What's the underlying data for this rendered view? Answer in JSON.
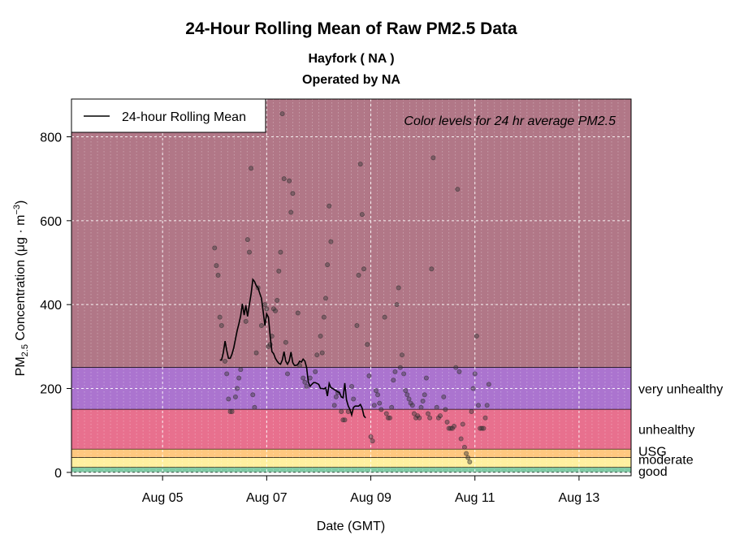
{
  "header": {
    "title": "24-Hour Rolling Mean of Raw PM2.5 Data",
    "subtitle_site": "Hayfork ( NA )",
    "subtitle_operator": "Operated by NA"
  },
  "chart_data": {
    "type": "scatter",
    "title": "24-Hour Rolling Mean of Raw PM2.5 Data",
    "xlabel": "Date (GMT)",
    "ylabel": "PM2.5 Concentration (µg·m−3)",
    "ylabel_parts": {
      "pre": "PM",
      "sub": "2.5",
      "mid": " Concentration (",
      "unit": "μg · m",
      "sup": "−3",
      "post": ")"
    },
    "xlim": [
      "2024-08-03T06:00",
      "2024-08-14T00:00"
    ],
    "ylim": [
      -8,
      890
    ],
    "x_ticks": [
      {
        "date": "2024-08-05",
        "label": "Aug 05"
      },
      {
        "date": "2024-08-07",
        "label": "Aug 07"
      },
      {
        "date": "2024-08-09",
        "label": "Aug 09"
      },
      {
        "date": "2024-08-11",
        "label": "Aug 11"
      },
      {
        "date": "2024-08-13",
        "label": "Aug 13"
      }
    ],
    "y_ticks": [
      0,
      200,
      400,
      600,
      800
    ],
    "grid": true,
    "legend": {
      "position": "top-left",
      "entries": [
        "24-hour Rolling Mean"
      ]
    },
    "annotation": "Color levels for 24 hr average PM2.5",
    "aqi_bands": [
      {
        "label": "good",
        "min": 0,
        "max": 12,
        "color": "#7fc9a4"
      },
      {
        "label": "moderate",
        "min": 12,
        "max": 35.5,
        "color": "#fff0a0"
      },
      {
        "label": "USG",
        "min": 35.5,
        "max": 55.5,
        "color": "#ffc87f"
      },
      {
        "label": "unhealthy",
        "min": 55.5,
        "max": 150.5,
        "color": "#e8708e"
      },
      {
        "label": "very unhealthy",
        "min": 150.5,
        "max": 250.5,
        "color": "#ab74cf"
      },
      {
        "label": "",
        "min": 250.5,
        "max": 890,
        "color": "#b17787"
      }
    ],
    "series": [
      {
        "name": "",
        "kind": "points",
        "points": [
          [
            "2024-08-06T00:00",
            535
          ],
          [
            "2024-08-06T00:48",
            493
          ],
          [
            "2024-08-06T01:36",
            470
          ],
          [
            "2024-08-06T02:24",
            370
          ],
          [
            "2024-08-06T03:12",
            350
          ],
          [
            "2024-08-06T04:48",
            265
          ],
          [
            "2024-08-06T05:36",
            235
          ],
          [
            "2024-08-06T06:24",
            175
          ],
          [
            "2024-08-06T07:12",
            145
          ],
          [
            "2024-08-06T08:00",
            145
          ],
          [
            "2024-08-06T09:36",
            180
          ],
          [
            "2024-08-06T10:24",
            200
          ],
          [
            "2024-08-06T11:12",
            225
          ],
          [
            "2024-08-06T12:00",
            245
          ],
          [
            "2024-08-06T14:24",
            360
          ],
          [
            "2024-08-06T15:12",
            555
          ],
          [
            "2024-08-06T16:00",
            525
          ],
          [
            "2024-08-06T16:48",
            725
          ],
          [
            "2024-08-06T17:36",
            185
          ],
          [
            "2024-08-06T18:24",
            155
          ],
          [
            "2024-08-06T19:12",
            285
          ],
          [
            "2024-08-06T20:00",
            440
          ],
          [
            "2024-08-06T21:36",
            350
          ],
          [
            "2024-08-06T23:12",
            400
          ],
          [
            "2024-08-07T00:00",
            390
          ],
          [
            "2024-08-07T00:48",
            300
          ],
          [
            "2024-08-07T01:36",
            305
          ],
          [
            "2024-08-07T02:24",
            325
          ],
          [
            "2024-08-07T03:12",
            390
          ],
          [
            "2024-08-07T04:00",
            385
          ],
          [
            "2024-08-07T04:48",
            410
          ],
          [
            "2024-08-07T05:36",
            480
          ],
          [
            "2024-08-07T06:24",
            525
          ],
          [
            "2024-08-07T07:12",
            855
          ],
          [
            "2024-08-07T08:00",
            700
          ],
          [
            "2024-08-07T08:48",
            310
          ],
          [
            "2024-08-07T09:36",
            235
          ],
          [
            "2024-08-07T10:24",
            695
          ],
          [
            "2024-08-07T11:12",
            620
          ],
          [
            "2024-08-07T12:00",
            665
          ],
          [
            "2024-08-07T14:24",
            380
          ],
          [
            "2024-08-07T15:12",
            255
          ],
          [
            "2024-08-07T16:48",
            225
          ],
          [
            "2024-08-07T17:36",
            215
          ],
          [
            "2024-08-07T18:24",
            205
          ],
          [
            "2024-08-07T20:00",
            225
          ],
          [
            "2024-08-07T22:24",
            240
          ],
          [
            "2024-08-07T23:12",
            280
          ],
          [
            "2024-08-08T00:48",
            325
          ],
          [
            "2024-08-08T01:36",
            285
          ],
          [
            "2024-08-08T02:24",
            370
          ],
          [
            "2024-08-08T03:12",
            415
          ],
          [
            "2024-08-08T04:00",
            495
          ],
          [
            "2024-08-08T04:48",
            635
          ],
          [
            "2024-08-08T05:36",
            550
          ],
          [
            "2024-08-08T07:12",
            160
          ],
          [
            "2024-08-08T08:00",
            180
          ],
          [
            "2024-08-08T08:48",
            190
          ],
          [
            "2024-08-08T10:24",
            145
          ],
          [
            "2024-08-08T11:12",
            125
          ],
          [
            "2024-08-08T12:00",
            125
          ],
          [
            "2024-08-08T13:36",
            145
          ],
          [
            "2024-08-08T15:12",
            205
          ],
          [
            "2024-08-08T16:00",
            175
          ],
          [
            "2024-08-08T17:36",
            350
          ],
          [
            "2024-08-08T18:24",
            470
          ],
          [
            "2024-08-08T19:12",
            735
          ],
          [
            "2024-08-08T20:00",
            615
          ],
          [
            "2024-08-08T20:48",
            485
          ],
          [
            "2024-08-08T22:24",
            305
          ],
          [
            "2024-08-08T23:12",
            230
          ],
          [
            "2024-08-09T00:00",
            85
          ],
          [
            "2024-08-09T00:48",
            75
          ],
          [
            "2024-08-09T01:36",
            160
          ],
          [
            "2024-08-09T02:24",
            195
          ],
          [
            "2024-08-09T03:12",
            185
          ],
          [
            "2024-08-09T04:00",
            165
          ],
          [
            "2024-08-09T04:48",
            150
          ],
          [
            "2024-08-09T06:24",
            370
          ],
          [
            "2024-08-09T07:12",
            140
          ],
          [
            "2024-08-09T08:00",
            130
          ],
          [
            "2024-08-09T08:48",
            130
          ],
          [
            "2024-08-09T09:36",
            155
          ],
          [
            "2024-08-09T10:24",
            220
          ],
          [
            "2024-08-09T11:12",
            240
          ],
          [
            "2024-08-09T12:00",
            400
          ],
          [
            "2024-08-09T12:48",
            440
          ],
          [
            "2024-08-09T13:36",
            250
          ],
          [
            "2024-08-09T14:24",
            280
          ],
          [
            "2024-08-09T15:12",
            235
          ],
          [
            "2024-08-09T16:00",
            195
          ],
          [
            "2024-08-09T16:48",
            185
          ],
          [
            "2024-08-09T17:36",
            175
          ],
          [
            "2024-08-09T18:24",
            165
          ],
          [
            "2024-08-09T19:12",
            160
          ],
          [
            "2024-08-09T20:00",
            140
          ],
          [
            "2024-08-09T20:48",
            130
          ],
          [
            "2024-08-09T21:36",
            135
          ],
          [
            "2024-08-09T22:24",
            130
          ],
          [
            "2024-08-09T23:12",
            155
          ],
          [
            "2024-08-10T00:00",
            170
          ],
          [
            "2024-08-10T00:48",
            185
          ],
          [
            "2024-08-10T01:36",
            225
          ],
          [
            "2024-08-10T02:24",
            140
          ],
          [
            "2024-08-10T03:12",
            130
          ],
          [
            "2024-08-10T04:00",
            485
          ],
          [
            "2024-08-10T04:48",
            750
          ],
          [
            "2024-08-10T06:24",
            155
          ],
          [
            "2024-08-10T07:12",
            130
          ],
          [
            "2024-08-10T08:00",
            135
          ],
          [
            "2024-08-10T09:36",
            180
          ],
          [
            "2024-08-10T10:24",
            150
          ],
          [
            "2024-08-10T11:12",
            120
          ],
          [
            "2024-08-10T12:00",
            105
          ],
          [
            "2024-08-10T12:48",
            105
          ],
          [
            "2024-08-10T13:36",
            105
          ],
          [
            "2024-08-10T14:24",
            110
          ],
          [
            "2024-08-10T15:12",
            250
          ],
          [
            "2024-08-10T16:00",
            675
          ],
          [
            "2024-08-10T16:48",
            240
          ],
          [
            "2024-08-10T17:36",
            80
          ],
          [
            "2024-08-10T18:24",
            115
          ],
          [
            "2024-08-10T19:12",
            60
          ],
          [
            "2024-08-10T20:00",
            45
          ],
          [
            "2024-08-10T20:48",
            35
          ],
          [
            "2024-08-10T21:36",
            25
          ],
          [
            "2024-08-10T22:24",
            145
          ],
          [
            "2024-08-10T23:12",
            200
          ],
          [
            "2024-08-11T00:00",
            235
          ],
          [
            "2024-08-11T00:48",
            325
          ],
          [
            "2024-08-11T01:36",
            160
          ],
          [
            "2024-08-11T02:24",
            105
          ],
          [
            "2024-08-11T03:12",
            105
          ],
          [
            "2024-08-11T04:00",
            105
          ],
          [
            "2024-08-11T04:48",
            130
          ],
          [
            "2024-08-11T05:36",
            160
          ],
          [
            "2024-08-11T06:24",
            210
          ]
        ]
      },
      {
        "name": "24-hour Rolling Mean",
        "kind": "line",
        "points": [
          [
            "2024-08-06T02:24",
            268
          ],
          [
            "2024-08-06T03:12",
            268
          ],
          [
            "2024-08-06T04:00",
            285
          ],
          [
            "2024-08-06T04:48",
            313
          ],
          [
            "2024-08-06T05:36",
            290
          ],
          [
            "2024-08-06T06:24",
            272
          ],
          [
            "2024-08-06T07:12",
            272
          ],
          [
            "2024-08-06T08:00",
            282
          ],
          [
            "2024-08-06T08:48",
            297
          ],
          [
            "2024-08-06T09:36",
            318
          ],
          [
            "2024-08-06T10:24",
            338
          ],
          [
            "2024-08-06T11:12",
            355
          ],
          [
            "2024-08-06T12:00",
            373
          ],
          [
            "2024-08-06T12:48",
            402
          ],
          [
            "2024-08-06T13:36",
            375
          ],
          [
            "2024-08-06T14:24",
            398
          ],
          [
            "2024-08-06T15:12",
            372
          ],
          [
            "2024-08-06T16:00",
            400
          ],
          [
            "2024-08-06T16:48",
            425
          ],
          [
            "2024-08-06T17:36",
            460
          ],
          [
            "2024-08-06T18:24",
            455
          ],
          [
            "2024-08-06T19:12",
            445
          ],
          [
            "2024-08-06T20:00",
            440
          ],
          [
            "2024-08-06T20:48",
            427
          ],
          [
            "2024-08-06T21:36",
            415
          ],
          [
            "2024-08-06T22:24",
            382
          ],
          [
            "2024-08-06T23:12",
            350
          ],
          [
            "2024-08-07T00:00",
            378
          ],
          [
            "2024-08-07T00:48",
            370
          ],
          [
            "2024-08-07T01:36",
            325
          ],
          [
            "2024-08-07T02:24",
            288
          ],
          [
            "2024-08-07T03:12",
            283
          ],
          [
            "2024-08-07T04:00",
            272
          ],
          [
            "2024-08-07T04:48",
            265
          ],
          [
            "2024-08-07T05:36",
            260
          ],
          [
            "2024-08-07T06:24",
            258
          ],
          [
            "2024-08-07T07:12",
            268
          ],
          [
            "2024-08-07T08:00",
            288
          ],
          [
            "2024-08-07T08:48",
            265
          ],
          [
            "2024-08-07T09:36",
            258
          ],
          [
            "2024-08-07T10:24",
            266
          ],
          [
            "2024-08-07T11:12",
            287
          ],
          [
            "2024-08-07T12:00",
            262
          ],
          [
            "2024-08-07T12:48",
            255
          ],
          [
            "2024-08-07T13:36",
            255
          ],
          [
            "2024-08-07T14:24",
            258
          ],
          [
            "2024-08-07T15:12",
            265
          ],
          [
            "2024-08-07T16:00",
            263
          ],
          [
            "2024-08-07T16:48",
            270
          ],
          [
            "2024-08-07T17:36",
            265
          ],
          [
            "2024-08-07T18:24",
            250
          ],
          [
            "2024-08-07T19:12",
            215
          ],
          [
            "2024-08-07T20:00",
            205
          ],
          [
            "2024-08-07T20:48",
            210
          ],
          [
            "2024-08-07T21:36",
            214
          ],
          [
            "2024-08-07T22:24",
            214
          ],
          [
            "2024-08-07T23:12",
            212
          ],
          [
            "2024-08-08T00:00",
            210
          ],
          [
            "2024-08-08T00:48",
            200
          ],
          [
            "2024-08-08T01:36",
            200
          ],
          [
            "2024-08-08T02:24",
            199
          ],
          [
            "2024-08-08T03:12",
            202
          ],
          [
            "2024-08-08T04:00",
            182
          ],
          [
            "2024-08-08T04:48",
            212
          ],
          [
            "2024-08-08T05:36",
            202
          ],
          [
            "2024-08-08T06:24",
            200
          ],
          [
            "2024-08-08T07:12",
            197
          ],
          [
            "2024-08-08T08:00",
            195
          ],
          [
            "2024-08-08T08:48",
            192
          ],
          [
            "2024-08-08T09:36",
            190
          ],
          [
            "2024-08-08T10:24",
            180
          ],
          [
            "2024-08-08T11:12",
            178
          ],
          [
            "2024-08-08T12:00",
            213
          ],
          [
            "2024-08-08T12:48",
            173
          ],
          [
            "2024-08-08T13:36",
            158
          ],
          [
            "2024-08-08T14:24",
            150
          ],
          [
            "2024-08-08T15:12",
            137
          ],
          [
            "2024-08-08T16:00",
            155
          ],
          [
            "2024-08-08T16:48",
            158
          ],
          [
            "2024-08-08T17:36",
            158
          ],
          [
            "2024-08-08T18:24",
            158
          ],
          [
            "2024-08-08T19:12",
            162
          ],
          [
            "2024-08-08T20:00",
            153
          ],
          [
            "2024-08-08T20:48",
            135
          ],
          [
            "2024-08-08T21:36",
            130
          ]
        ]
      }
    ]
  }
}
